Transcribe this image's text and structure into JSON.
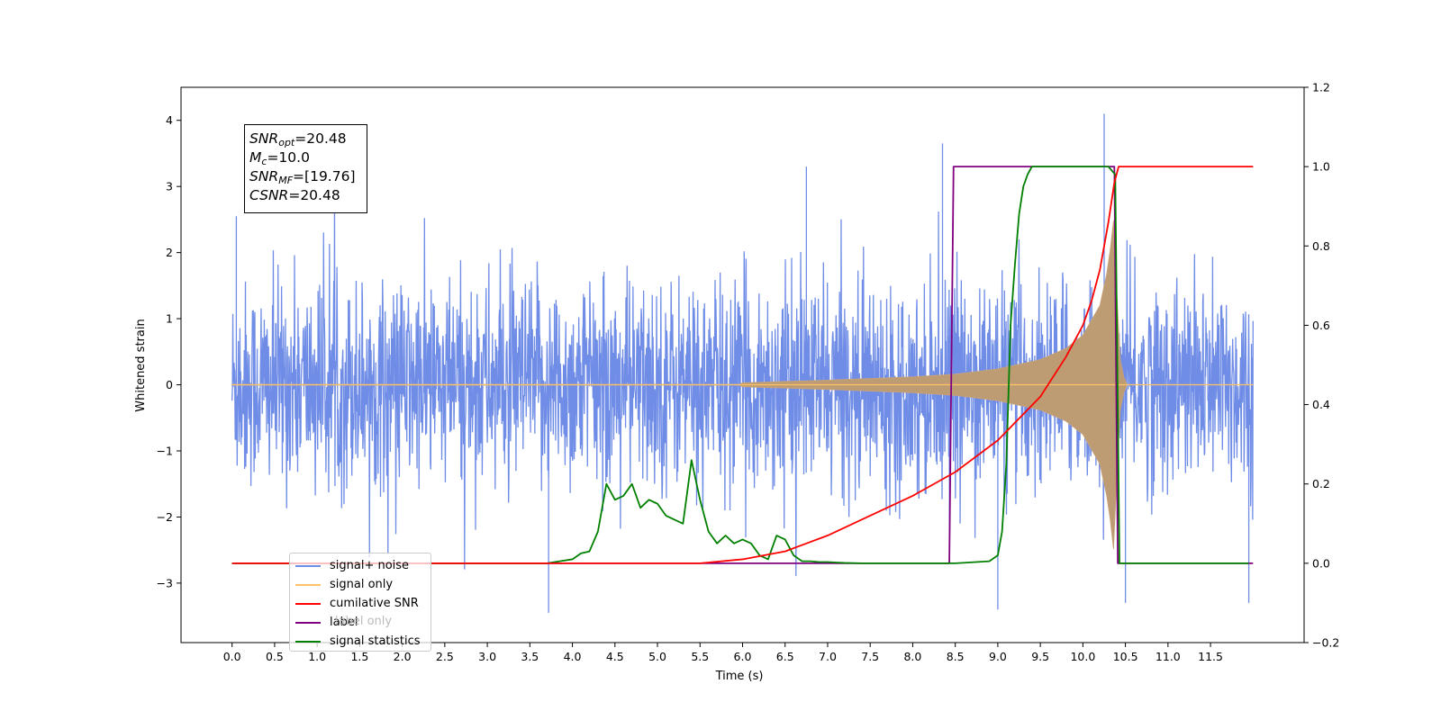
{
  "chart_data": {
    "type": "line",
    "xlabel": "Time (s)",
    "ylabel": "Whitened strain",
    "xlim": [
      -0.6,
      12.6
    ],
    "ylim": [
      -3.9,
      4.5
    ],
    "y2lim": [
      -0.2,
      1.2
    ],
    "x_ticks": [
      0.0,
      0.5,
      1.0,
      1.5,
      2.0,
      2.5,
      3.0,
      3.5,
      4.0,
      4.5,
      5.0,
      5.5,
      6.0,
      6.5,
      7.0,
      7.5,
      8.0,
      8.5,
      9.0,
      9.5,
      10.0,
      10.5,
      11.0,
      11.5
    ],
    "x_tick_labels": [
      "0.0",
      "0.5",
      "1.0",
      "1.5",
      "2.0",
      "2.5",
      "3.0",
      "3.5",
      "4.0",
      "4.5",
      "5.0",
      "5.5",
      "6.0",
      "6.5",
      "7.0",
      "7.5",
      "8.0",
      "8.5",
      "9.0",
      "9.5",
      "10.0",
      "10.5",
      "11.0",
      "11.5"
    ],
    "y_ticks": [
      -3,
      -2,
      -1,
      0,
      1,
      2,
      3,
      4
    ],
    "y_tick_labels": [
      "−3",
      "−2",
      "−1",
      "0",
      "1",
      "2",
      "3",
      "4"
    ],
    "y2_ticks": [
      -0.2,
      0.0,
      0.2,
      0.4,
      0.6,
      0.8,
      1.0,
      1.2
    ],
    "y2_tick_labels": [
      "−0.2",
      "0.0",
      "0.2",
      "0.4",
      "0.6",
      "0.8",
      "1.0",
      "1.2"
    ],
    "grid": false,
    "legend_position": "lower-left",
    "noise": {
      "t_start": 0.0,
      "t_end": 12.0,
      "typical_amplitude": 1.4,
      "spike_max": 4.1,
      "spike_min": -3.45
    },
    "signal_envelope": {
      "t": [
        6.0,
        7.0,
        8.0,
        8.5,
        9.0,
        9.5,
        9.8,
        10.0,
        10.2,
        10.3,
        10.37,
        10.42,
        10.5
      ],
      "amplitude": [
        0.03,
        0.07,
        0.12,
        0.16,
        0.24,
        0.38,
        0.55,
        0.75,
        1.2,
        1.8,
        2.6,
        0.5,
        0.0
      ]
    },
    "cumulative_snr": {
      "t": [
        0.0,
        5.5,
        6.0,
        6.5,
        7.0,
        7.5,
        8.0,
        8.5,
        9.0,
        9.5,
        9.8,
        10.0,
        10.1,
        10.2,
        10.3,
        10.37,
        10.42,
        10.45,
        12.0
      ],
      "values": [
        0.0,
        0.0,
        0.01,
        0.03,
        0.07,
        0.12,
        0.17,
        0.23,
        0.31,
        0.42,
        0.52,
        0.6,
        0.66,
        0.74,
        0.86,
        0.96,
        1.0,
        1.0,
        1.0
      ]
    },
    "label_line": {
      "t": [
        0.0,
        8.43,
        8.48,
        10.37,
        10.41,
        12.0
      ],
      "values": [
        0.0,
        0.0,
        1.0,
        1.0,
        0.0,
        0.0
      ]
    },
    "signal_statistics": {
      "t": [
        0.0,
        3.7,
        3.85,
        4.0,
        4.1,
        4.2,
        4.3,
        4.4,
        4.5,
        4.6,
        4.7,
        4.8,
        4.9,
        5.0,
        5.1,
        5.2,
        5.3,
        5.4,
        5.5,
        5.6,
        5.7,
        5.8,
        5.9,
        6.0,
        6.1,
        6.2,
        6.3,
        6.4,
        6.5,
        6.6,
        6.7,
        6.8,
        6.9,
        7.0,
        7.1,
        7.2,
        7.4,
        8.5,
        8.9,
        9.0,
        9.05,
        9.1,
        9.15,
        9.2,
        9.25,
        9.3,
        9.35,
        9.4,
        9.5,
        9.6,
        10.3,
        10.38,
        10.43,
        11.0,
        11.95
      ],
      "values": [
        0.0,
        0.0,
        0.005,
        0.01,
        0.025,
        0.03,
        0.08,
        0.2,
        0.16,
        0.17,
        0.2,
        0.14,
        0.16,
        0.15,
        0.12,
        0.11,
        0.1,
        0.26,
        0.16,
        0.08,
        0.05,
        0.07,
        0.05,
        0.06,
        0.05,
        0.02,
        0.01,
        0.07,
        0.06,
        0.02,
        0.005,
        0.005,
        0.003,
        0.003,
        0.002,
        0.001,
        0.0,
        0.0,
        0.005,
        0.02,
        0.08,
        0.25,
        0.6,
        0.75,
        0.88,
        0.95,
        0.98,
        1.0,
        1.0,
        1.0,
        1.0,
        0.98,
        0.0,
        0.0,
        0.0
      ]
    },
    "series": [
      {
        "name": "signal+ noise",
        "color": "#6f8de6"
      },
      {
        "name": "signal only",
        "color": "#ffc266"
      },
      {
        "name": "cumilative SNR",
        "color": "#ff0000"
      },
      {
        "name": "label",
        "color": "#800080"
      },
      {
        "name": "signal statistics",
        "color": "#008000"
      }
    ],
    "legend_extra_text": "label only",
    "annotations": {
      "snr_opt_sym": "SNR",
      "snr_opt_sub": "opt",
      "snr_opt_val": "=20.48",
      "mc_sym": "M",
      "mc_sub": "c",
      "mc_val": "=10.0",
      "snr_mf_sym": "SNR",
      "snr_mf_sub": "MF",
      "snr_mf_val": "=[19.76]",
      "csnr_sym": "CSNR",
      "csnr_val": "=20.48"
    }
  }
}
